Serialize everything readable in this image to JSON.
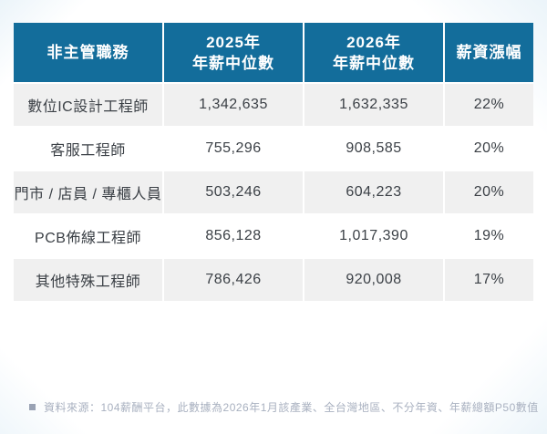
{
  "colors": {
    "header_bg": "#136d9b",
    "header_text": "#ffffff",
    "row_alt_bg": "#f0f0f0",
    "row_bg": "#ffffff",
    "cell_text": "#3b4046",
    "footer_text": "#a9b1c0",
    "background_tint": "#e9f3f9"
  },
  "table": {
    "headers": [
      {
        "line1": "非主管職務"
      },
      {
        "line1": "2025年",
        "line2": "年薪中位數"
      },
      {
        "line1": "2026年",
        "line2": "年薪中位數"
      },
      {
        "line1": "薪資漲幅"
      }
    ],
    "rows": [
      {
        "position": "數位IC設計工程師",
        "salary_2025": "1,342,635",
        "salary_2026": "1,632,335",
        "growth": "22%"
      },
      {
        "position": "客服工程師",
        "salary_2025": "755,296",
        "salary_2026": "908,585",
        "growth": "20%"
      },
      {
        "position": "門市 / 店員 / 專櫃人員",
        "salary_2025": "503,246",
        "salary_2026": "604,223",
        "growth": "20%"
      },
      {
        "position": "PCB佈線工程師",
        "salary_2025": "856,128",
        "salary_2026": "1,017,390",
        "growth": "19%"
      },
      {
        "position": "其他特殊工程師",
        "salary_2025": "786,426",
        "salary_2026": "920,008",
        "growth": "17%"
      }
    ]
  },
  "footer": {
    "source_note": "資料來源：104薪酬平台，此數據為2026年1月該產業、全台灣地區、不分年資、年薪總額P50數值"
  },
  "chart_data": {
    "type": "table",
    "title": "",
    "columns": [
      "非主管職務",
      "2025年年薪中位數",
      "2026年年薪中位數",
      "薪資漲幅"
    ],
    "rows": [
      [
        "數位IC設計工程師",
        1342635,
        1632335,
        "22%"
      ],
      [
        "客服工程師",
        755296,
        908585,
        "20%"
      ],
      [
        "門市 / 店員 / 專櫃人員",
        503246,
        604223,
        "20%"
      ],
      [
        "PCB佈線工程師",
        856128,
        1017390,
        "19%"
      ],
      [
        "其他特殊工程師",
        786426,
        920008,
        "17%"
      ]
    ],
    "source": "資料來源：104薪酬平台，此數據為2026年1月該產業、全台灣地區、不分年資、年薪總額P50數值"
  }
}
